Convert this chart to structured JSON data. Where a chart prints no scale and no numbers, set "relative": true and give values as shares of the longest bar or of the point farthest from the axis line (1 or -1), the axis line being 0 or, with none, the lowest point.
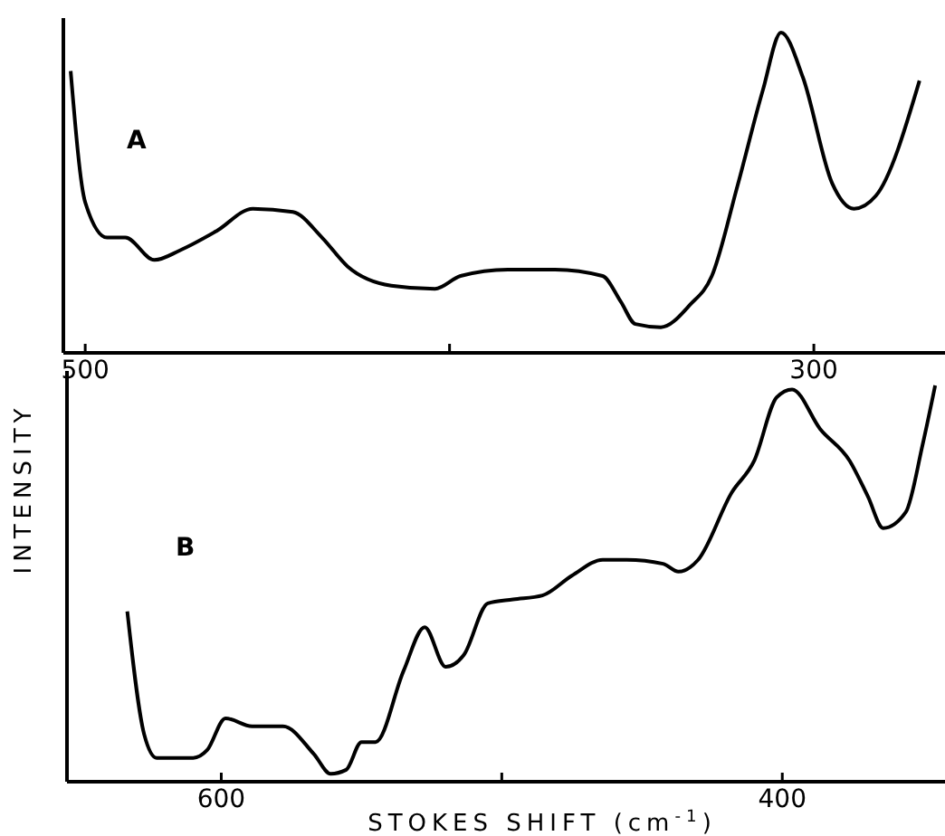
{
  "chart_data": [
    {
      "type": "line",
      "relative": true,
      "color": "#000000",
      "annotations": [
        "A"
      ],
      "x": [
        504,
        500,
        494,
        489,
        481,
        474,
        464,
        454,
        443,
        435,
        428,
        416,
        404,
        397,
        384,
        371,
        358,
        353,
        349,
        342,
        334,
        328,
        321,
        314,
        309,
        303,
        295,
        289,
        283,
        271
      ],
      "values": [
        0.88,
        0.47,
        0.36,
        0.36,
        0.29,
        0.32,
        0.38,
        0.45,
        0.44,
        0.36,
        0.27,
        0.21,
        0.2,
        0.24,
        0.26,
        0.26,
        0.24,
        0.16,
        0.09,
        0.08,
        0.15,
        0.24,
        0.52,
        0.82,
        1.0,
        0.86,
        0.53,
        0.45,
        0.49,
        0.85
      ],
      "xlim": [
        506,
        264
      ],
      "xticks": [
        500,
        {
          "value": 400,
          "label": null
        },
        300
      ]
    },
    {
      "type": "line",
      "relative": true,
      "color": "#000000",
      "annotations": [
        "B"
      ],
      "xlabel": "STOKES  SHIFT  (cm$^{-1}$)",
      "ylabel": "INTENSITY",
      "x": [
        633.5,
        627.5,
        623,
        610,
        605,
        598.5,
        589,
        578,
        567,
        561,
        555.5,
        550,
        545,
        535,
        527.5,
        520,
        513.5,
        505,
        496,
        485.5,
        475,
        464,
        455.5,
        442.5,
        437,
        430,
        418,
        410,
        402,
        396.5,
        386.5,
        376,
        369.5,
        364,
        356,
        350,
        345.5
      ],
      "values": [
        0.43,
        0.12,
        0.06,
        0.06,
        0.08,
        0.16,
        0.14,
        0.14,
        0.07,
        0.02,
        0.03,
        0.1,
        0.1,
        0.28,
        0.39,
        0.29,
        0.32,
        0.45,
        0.46,
        0.47,
        0.52,
        0.56,
        0.56,
        0.55,
        0.53,
        0.56,
        0.73,
        0.81,
        0.97,
        0.99,
        0.89,
        0.81,
        0.72,
        0.64,
        0.68,
        0.85,
        1.0
      ],
      "xlim": [
        655,
        342
      ],
      "xticks": [
        600,
        {
          "value": 500,
          "label": null
        },
        400
      ]
    }
  ]
}
